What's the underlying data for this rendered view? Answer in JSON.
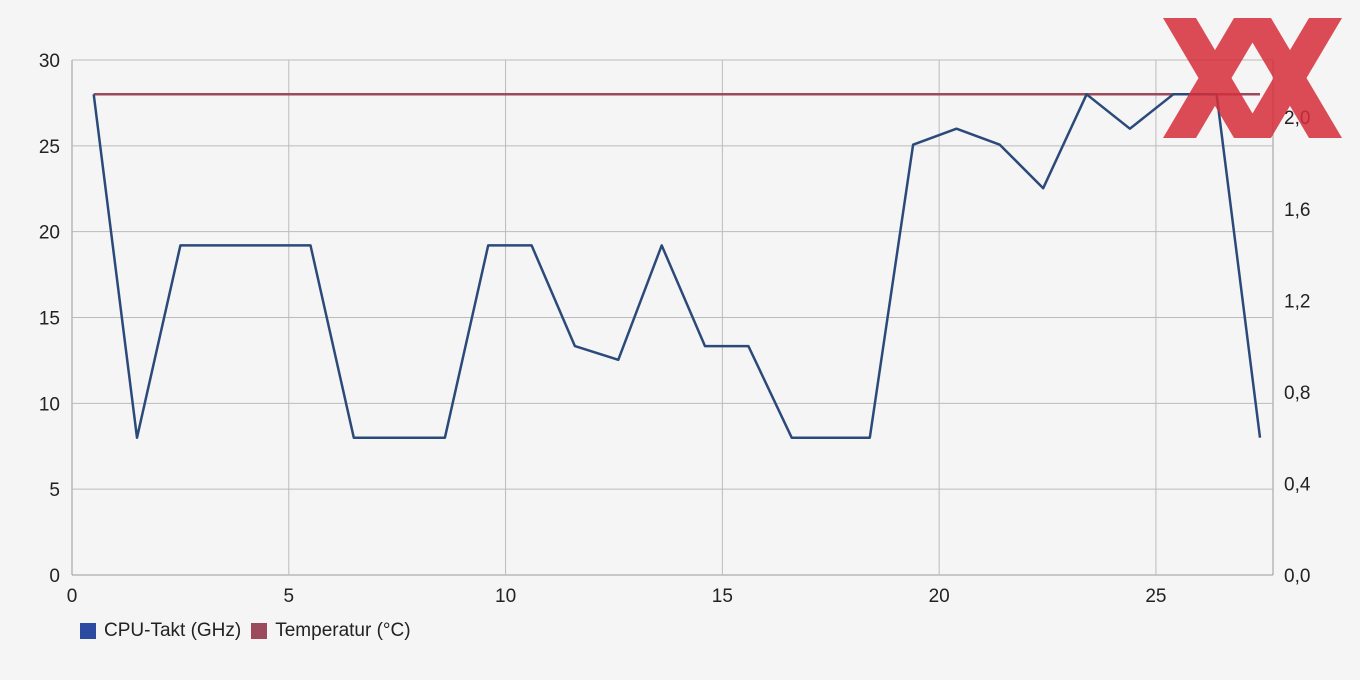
{
  "chart_data": {
    "type": "line",
    "x": [
      0.5,
      1.5,
      2.5,
      3.5,
      4.5,
      5.5,
      6.5,
      7.5,
      8.6,
      9.6,
      10.6,
      11.6,
      12.6,
      13.6,
      14.6,
      15.6,
      16.6,
      17.6,
      18.4,
      19.4,
      20.4,
      21.4,
      22.4,
      23.4,
      24.4,
      25.4,
      26.4,
      27.4
    ],
    "xlim": [
      0,
      27.7
    ],
    "xticks": [
      "0",
      "5",
      "10",
      "15",
      "20",
      "25"
    ],
    "xtick_values": [
      0,
      5,
      10,
      15,
      20,
      25
    ],
    "y_left": {
      "lim": [
        0,
        30
      ],
      "ticks": [
        "0",
        "5",
        "10",
        "15",
        "20",
        "25",
        "30"
      ],
      "tick_values": [
        0,
        5,
        10,
        15,
        20,
        25,
        30
      ]
    },
    "y_right": {
      "lim": [
        0,
        2.25
      ],
      "ticks": [
        "0,0",
        "0,4",
        "0,8",
        "1,2",
        "1,6",
        "2,0"
      ],
      "tick_values": [
        0,
        0.4,
        0.8,
        1.2,
        1.6,
        2.0
      ]
    },
    "grid": true,
    "series": [
      {
        "name": "CPU-Takt (GHz)",
        "axis": "right",
        "color": "#2b4a7a",
        "values": [
          2.1,
          0.6,
          1.44,
          1.44,
          1.44,
          1.44,
          0.6,
          0.6,
          0.6,
          1.44,
          1.44,
          1.0,
          0.94,
          1.44,
          1.0,
          1.0,
          0.6,
          0.6,
          0.6,
          1.88,
          1.95,
          1.88,
          1.69,
          2.1,
          1.95,
          2.1,
          2.1,
          0.6
        ]
      },
      {
        "name": "Temperatur (°C)",
        "axis": "left",
        "color": "#9c4a5c",
        "values": [
          28,
          28,
          28,
          28,
          28,
          28,
          28,
          28,
          28,
          28,
          28,
          28,
          28,
          28,
          28,
          28,
          28,
          28,
          28,
          28,
          28,
          28,
          28,
          28,
          28,
          28,
          28,
          28
        ]
      }
    ],
    "legend": {
      "position": "bottom-left"
    }
  },
  "legend_colors": {
    "cpu": "#2b4aa0",
    "temp": "#9c4a5c"
  },
  "watermark": {
    "color": "#d62e3a"
  }
}
